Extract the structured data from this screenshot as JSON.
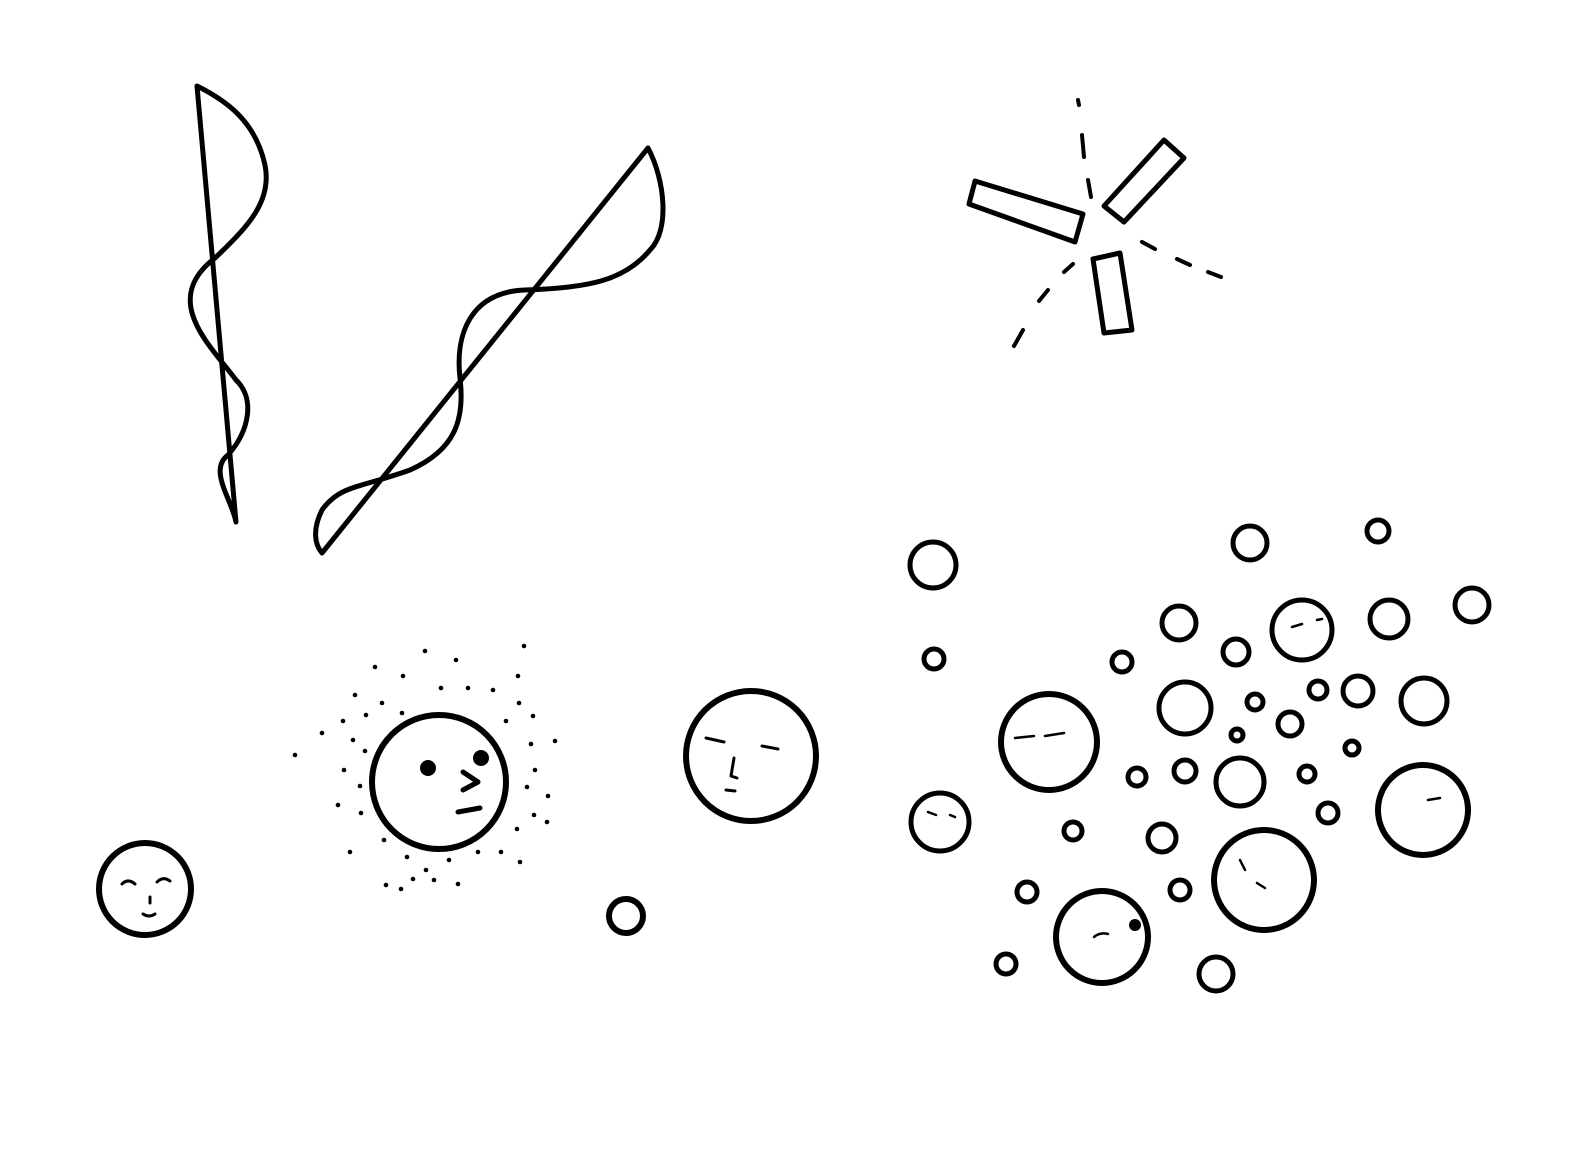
{
  "drawing": {
    "background_color": "#ffffff",
    "ink_color": "#000000",
    "elements": [
      "wavy-strand-left",
      "wavy-strand-right",
      "broken-rods",
      "halo-face",
      "face-large",
      "face-small",
      "small-bubble",
      "bubble-cluster"
    ]
  }
}
